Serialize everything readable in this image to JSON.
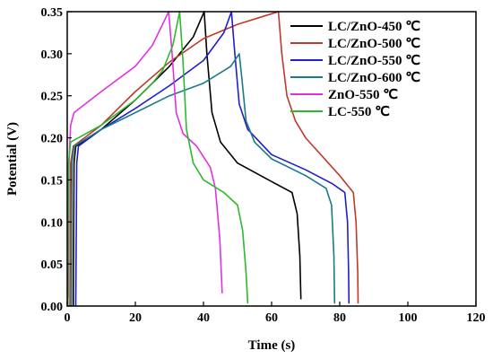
{
  "chart_data": {
    "type": "line",
    "title": "",
    "xlabel": "Time (s)",
    "ylabel": "Potential (V)",
    "xlim": [
      0,
      120
    ],
    "ylim": [
      0,
      0.35
    ],
    "xticks": [
      0,
      20,
      40,
      60,
      80,
      100,
      120
    ],
    "yticks": [
      0.0,
      0.05,
      0.1,
      0.15,
      0.2,
      0.25,
      0.3,
      0.35
    ],
    "xtick_labels": [
      "0",
      "20",
      "40",
      "60",
      "80",
      "100",
      "120"
    ],
    "ytick_labels": [
      "0.00",
      "0.05",
      "0.10",
      "0.15",
      "0.20",
      "0.25",
      "0.30",
      "0.35"
    ],
    "grid": false,
    "legend_position": "top-right",
    "series": [
      {
        "name": "LC/ZnO-450 ℃",
        "color": "#000000",
        "points": [
          [
            1.8,
            0
          ],
          [
            2.0,
            0.17
          ],
          [
            2.5,
            0.19
          ],
          [
            10,
            0.21
          ],
          [
            20,
            0.245
          ],
          [
            30,
            0.285
          ],
          [
            37,
            0.32
          ],
          [
            40.2,
            0.35
          ],
          [
            41,
            0.3
          ],
          [
            42.5,
            0.23
          ],
          [
            45,
            0.195
          ],
          [
            50,
            0.17
          ],
          [
            60,
            0.148
          ],
          [
            66,
            0.135
          ],
          [
            67.5,
            0.11
          ],
          [
            68.3,
            0.06
          ],
          [
            68.6,
            0.008
          ]
        ]
      },
      {
        "name": "LC/ZnO-500 ℃",
        "color": "#c0392b",
        "points": [
          [
            0.8,
            0
          ],
          [
            1.0,
            0.17
          ],
          [
            1.8,
            0.19
          ],
          [
            10,
            0.215
          ],
          [
            20,
            0.255
          ],
          [
            30,
            0.29
          ],
          [
            40,
            0.318
          ],
          [
            50,
            0.335
          ],
          [
            58,
            0.345
          ],
          [
            62,
            0.35
          ],
          [
            63,
            0.3
          ],
          [
            64.5,
            0.25
          ],
          [
            67,
            0.22
          ],
          [
            70,
            0.2
          ],
          [
            80,
            0.155
          ],
          [
            84,
            0.135
          ],
          [
            84.8,
            0.1
          ],
          [
            85.3,
            0.04
          ],
          [
            85.4,
            0.003
          ]
        ]
      },
      {
        "name": "LC/ZnO-550 ℃",
        "color": "#1f1fcc",
        "points": [
          [
            2.5,
            0
          ],
          [
            2.8,
            0.17
          ],
          [
            3.3,
            0.19
          ],
          [
            10,
            0.21
          ],
          [
            20,
            0.235
          ],
          [
            30,
            0.262
          ],
          [
            40,
            0.292
          ],
          [
            46,
            0.325
          ],
          [
            48.2,
            0.35
          ],
          [
            49.2,
            0.3
          ],
          [
            50.5,
            0.24
          ],
          [
            53,
            0.21
          ],
          [
            60,
            0.18
          ],
          [
            70,
            0.162
          ],
          [
            78,
            0.145
          ],
          [
            81.5,
            0.135
          ],
          [
            82.3,
            0.1
          ],
          [
            82.6,
            0.04
          ],
          [
            82.7,
            0.003
          ]
        ]
      },
      {
        "name": "LC/ZnO-600 ℃",
        "color": "#1a7a8a",
        "points": [
          [
            1.2,
            0
          ],
          [
            1.4,
            0.17
          ],
          [
            2.0,
            0.19
          ],
          [
            10,
            0.21
          ],
          [
            20,
            0.23
          ],
          [
            30,
            0.25
          ],
          [
            40,
            0.265
          ],
          [
            48,
            0.285
          ],
          [
            50.5,
            0.3
          ],
          [
            51.3,
            0.27
          ],
          [
            52.5,
            0.22
          ],
          [
            55,
            0.195
          ],
          [
            60,
            0.175
          ],
          [
            70,
            0.155
          ],
          [
            76,
            0.14
          ],
          [
            77.6,
            0.12
          ],
          [
            78.3,
            0.06
          ],
          [
            78.5,
            0.003
          ]
        ]
      },
      {
        "name": "ZnO-550 ℃",
        "color": "#e033e0",
        "points": [
          [
            0.3,
            0.01
          ],
          [
            0.5,
            0.17
          ],
          [
            1.0,
            0.215
          ],
          [
            2.0,
            0.23
          ],
          [
            10,
            0.255
          ],
          [
            20,
            0.285
          ],
          [
            25,
            0.31
          ],
          [
            28,
            0.335
          ],
          [
            29.8,
            0.35
          ],
          [
            30.8,
            0.3
          ],
          [
            32,
            0.23
          ],
          [
            34,
            0.205
          ],
          [
            38,
            0.19
          ],
          [
            42,
            0.165
          ],
          [
            43.5,
            0.14
          ],
          [
            44.8,
            0.08
          ],
          [
            45.5,
            0.015
          ]
        ]
      },
      {
        "name": "LC-550 ℃",
        "color": "#2eb82e",
        "points": [
          [
            0.2,
            0.0
          ],
          [
            0.4,
            0.17
          ],
          [
            1.0,
            0.195
          ],
          [
            10,
            0.215
          ],
          [
            20,
            0.245
          ],
          [
            25,
            0.265
          ],
          [
            28,
            0.28
          ],
          [
            31,
            0.31
          ],
          [
            33,
            0.35
          ],
          [
            34,
            0.29
          ],
          [
            35,
            0.21
          ],
          [
            37,
            0.17
          ],
          [
            40,
            0.15
          ],
          [
            46,
            0.135
          ],
          [
            50,
            0.12
          ],
          [
            51.5,
            0.09
          ],
          [
            52.5,
            0.04
          ],
          [
            53,
            0.003
          ]
        ]
      }
    ]
  }
}
